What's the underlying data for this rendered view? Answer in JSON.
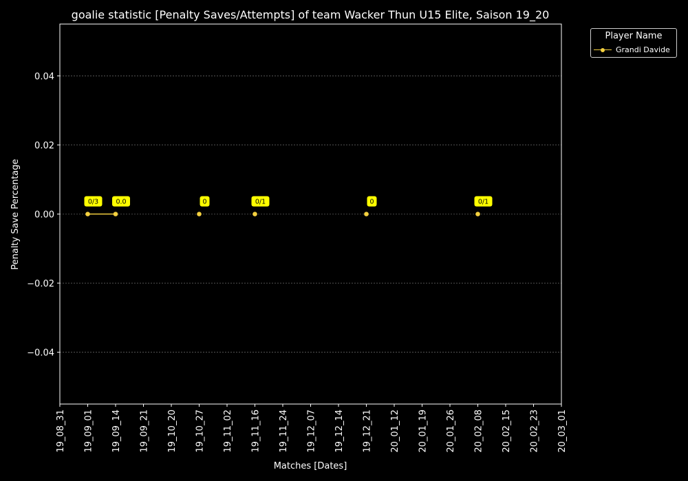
{
  "chart_data": {
    "type": "line",
    "title": "goalie statistic [Penalty Saves/Attempts] of team Wacker Thun U15 Elite, Saison 19_20",
    "xlabel": "Matches [Dates]",
    "ylabel": "Penalty Save Percentage",
    "x_ticks": [
      "19_08_31",
      "19_09_01",
      "19_09_14",
      "19_09_21",
      "19_10_20",
      "19_10_27",
      "19_11_02",
      "19_11_16",
      "19_11_24",
      "19_12_07",
      "19_12_14",
      "19_12_21",
      "20_01_12",
      "20_01_19",
      "20_01_26",
      "20_02_08",
      "20_02_15",
      "20_02_23",
      "20_03_01"
    ],
    "ylim": [
      -0.055,
      0.055
    ],
    "y_ticks": [
      -0.04,
      -0.02,
      0.0,
      0.02,
      0.04
    ],
    "y_tick_labels": [
      "−0.04",
      "−0.02",
      "0.00",
      "0.02",
      "0.04"
    ],
    "grid": "horizontal dashed",
    "legend": {
      "title": "Player Name",
      "position": "top-right outside"
    },
    "series": [
      {
        "name": "Grandi Davide",
        "color": "#f4d03f",
        "points": [
          {
            "x": "19_09_01",
            "y": 0.0,
            "label": "0/3"
          },
          {
            "x": "19_09_14",
            "y": 0.0,
            "label": "0.0"
          },
          {
            "x": "19_10_27",
            "y": 0.0,
            "label": "0"
          },
          {
            "x": "19_11_16",
            "y": 0.0,
            "label": "0/1"
          },
          {
            "x": "19_12_21",
            "y": 0.0,
            "label": "0"
          },
          {
            "x": "20_02_08",
            "y": 0.0,
            "label": "0/1"
          }
        ],
        "connected_segments": [
          [
            "19_09_01",
            "19_09_14"
          ]
        ]
      }
    ]
  }
}
